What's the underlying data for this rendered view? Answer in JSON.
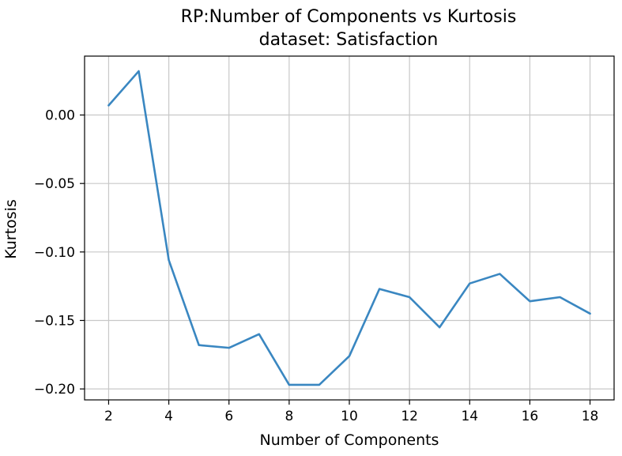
{
  "chart_data": {
    "type": "line",
    "title": "RP:Number of Components vs Kurtosis",
    "subtitle": "dataset: Satisfaction",
    "xlabel": "Number of Components",
    "ylabel": "Kurtosis",
    "x": [
      2,
      3,
      4,
      5,
      6,
      7,
      8,
      9,
      10,
      11,
      12,
      13,
      14,
      15,
      16,
      17,
      18
    ],
    "series": [
      {
        "values": [
          0.007,
          0.032,
          -0.106,
          -0.168,
          -0.17,
          -0.16,
          -0.197,
          -0.197,
          -0.176,
          -0.127,
          -0.133,
          -0.155,
          -0.123,
          -0.116,
          -0.136,
          -0.133,
          -0.145
        ],
        "color": "#3a87c1"
      }
    ],
    "xticks": [
      2,
      4,
      6,
      8,
      10,
      12,
      14,
      16,
      18
    ],
    "xtick_labels": [
      "2",
      "4",
      "6",
      "8",
      "10",
      "12",
      "14",
      "16",
      "18"
    ],
    "yticks": [
      0.0,
      -0.05,
      -0.1,
      -0.15,
      -0.2
    ],
    "ytick_labels": [
      "0.00",
      "−0.05",
      "−0.10",
      "−0.15",
      "−0.20"
    ],
    "xlim": [
      1.2,
      18.8
    ],
    "ylim": [
      -0.208,
      0.043
    ],
    "grid": true,
    "grid_color": "#c8c8c8"
  }
}
